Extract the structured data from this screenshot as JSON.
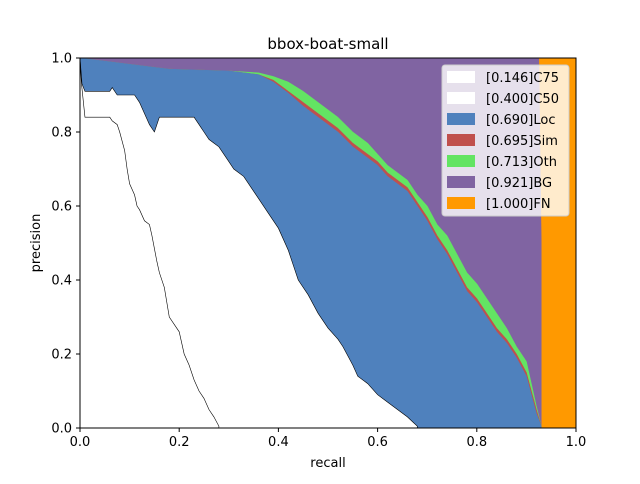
{
  "chart_data": {
    "type": "area",
    "title": "bbox-boat-small",
    "xlabel": "recall",
    "ylabel": "precision",
    "xlim": [
      0,
      1
    ],
    "ylim": [
      0,
      1
    ],
    "xticks": [
      "0.0",
      "0.2",
      "0.4",
      "0.6",
      "0.8",
      "1.0"
    ],
    "yticks": [
      "0.0",
      "0.2",
      "0.4",
      "0.6",
      "0.8",
      "1.0"
    ],
    "grid": false,
    "legend_position": "top-right",
    "legend": [
      {
        "label": "[0.146]C75",
        "color": "#ffffff"
      },
      {
        "label": "[0.400]C50",
        "color": "#ffffff"
      },
      {
        "label": "[0.690]Loc",
        "color": "#4f81bd"
      },
      {
        "label": "[0.695]Sim",
        "color": "#c0504d"
      },
      {
        "label": "[0.713]Oth",
        "color": "#63e463"
      },
      {
        "label": "[0.921]BG",
        "color": "#8064a2"
      },
      {
        "label": "[1.000]FN",
        "color": "#ff9900"
      }
    ],
    "series": [
      {
        "name": "[1.000]FN",
        "color": "#ff9900",
        "x": [
          0,
          1,
          1,
          0
        ],
        "y": [
          1,
          1,
          0,
          0
        ]
      },
      {
        "name": "[0.921]BG",
        "color": "#8064a2",
        "x": [
          0,
          0.925,
          0.93,
          0.93,
          0
        ],
        "y": [
          1,
          1,
          0.5,
          0,
          0
        ]
      },
      {
        "name": "[0.713]Oth",
        "color": "#63e463",
        "x": [
          0,
          0.18,
          0.3,
          0.36,
          0.39,
          0.42,
          0.45,
          0.48,
          0.52,
          0.55,
          0.58,
          0.6,
          0.62,
          0.64,
          0.66,
          0.68,
          0.7,
          0.72,
          0.74,
          0.76,
          0.78,
          0.8,
          0.82,
          0.84,
          0.86,
          0.88,
          0.9,
          0.92,
          0.93,
          0.93,
          0
        ],
        "y": [
          1,
          0.97,
          0.965,
          0.96,
          0.95,
          0.935,
          0.91,
          0.88,
          0.84,
          0.8,
          0.77,
          0.74,
          0.71,
          0.69,
          0.67,
          0.63,
          0.6,
          0.55,
          0.52,
          0.47,
          0.42,
          0.39,
          0.35,
          0.31,
          0.27,
          0.22,
          0.18,
          0.06,
          0.005,
          0,
          0
        ]
      },
      {
        "name": "[0.695]Sim",
        "color": "#c0504d",
        "x": [
          0,
          0.18,
          0.3,
          0.36,
          0.39,
          0.42,
          0.45,
          0.48,
          0.52,
          0.55,
          0.58,
          0.6,
          0.62,
          0.64,
          0.66,
          0.68,
          0.7,
          0.72,
          0.74,
          0.76,
          0.78,
          0.8,
          0.82,
          0.84,
          0.86,
          0.88,
          0.9,
          0.92,
          0.93,
          0.93,
          0
        ],
        "y": [
          1,
          0.97,
          0.965,
          0.955,
          0.94,
          0.91,
          0.88,
          0.85,
          0.81,
          0.77,
          0.74,
          0.72,
          0.69,
          0.67,
          0.65,
          0.61,
          0.57,
          0.52,
          0.48,
          0.43,
          0.38,
          0.35,
          0.31,
          0.27,
          0.24,
          0.2,
          0.15,
          0.05,
          0.005,
          0,
          0
        ]
      },
      {
        "name": "[0.690]Loc",
        "color": "#4f81bd",
        "x": [
          0,
          0.18,
          0.3,
          0.36,
          0.39,
          0.42,
          0.45,
          0.48,
          0.52,
          0.55,
          0.58,
          0.6,
          0.62,
          0.64,
          0.66,
          0.68,
          0.7,
          0.72,
          0.74,
          0.76,
          0.78,
          0.8,
          0.82,
          0.84,
          0.86,
          0.88,
          0.9,
          0.92,
          0.93,
          0.93,
          0
        ],
        "y": [
          1,
          0.97,
          0.965,
          0.955,
          0.935,
          0.905,
          0.87,
          0.84,
          0.8,
          0.76,
          0.73,
          0.71,
          0.68,
          0.66,
          0.64,
          0.6,
          0.56,
          0.51,
          0.47,
          0.42,
          0.37,
          0.34,
          0.3,
          0.26,
          0.23,
          0.19,
          0.14,
          0.04,
          0.005,
          0,
          0
        ]
      },
      {
        "name": "[0.400]C50",
        "color": "#ffffff",
        "x": [
          0,
          0.004,
          0.01,
          0.06,
          0.065,
          0.075,
          0.11,
          0.12,
          0.13,
          0.14,
          0.15,
          0.16,
          0.18,
          0.23,
          0.24,
          0.25,
          0.26,
          0.27,
          0.28,
          0.29,
          0.3,
          0.31,
          0.33,
          0.36,
          0.38,
          0.4,
          0.42,
          0.43,
          0.44,
          0.46,
          0.48,
          0.5,
          0.52,
          0.53,
          0.55,
          0.56,
          0.58,
          0.6,
          0.62,
          0.64,
          0.66,
          0.68,
          0.68,
          0
        ],
        "y": [
          1,
          0.93,
          0.91,
          0.91,
          0.92,
          0.9,
          0.9,
          0.88,
          0.85,
          0.82,
          0.8,
          0.84,
          0.84,
          0.84,
          0.82,
          0.8,
          0.78,
          0.77,
          0.76,
          0.74,
          0.72,
          0.7,
          0.68,
          0.62,
          0.58,
          0.54,
          0.48,
          0.44,
          0.4,
          0.36,
          0.31,
          0.27,
          0.24,
          0.22,
          0.17,
          0.14,
          0.12,
          0.09,
          0.07,
          0.05,
          0.03,
          0.005,
          0,
          0
        ]
      },
      {
        "name": "[0.146]C75",
        "color": "#ffffff",
        "x": [
          0,
          0.003,
          0.01,
          0.06,
          0.065,
          0.075,
          0.08,
          0.09,
          0.095,
          0.1,
          0.11,
          0.115,
          0.12,
          0.13,
          0.14,
          0.145,
          0.155,
          0.16,
          0.17,
          0.18,
          0.2,
          0.21,
          0.22,
          0.23,
          0.24,
          0.25,
          0.26,
          0.27,
          0.28,
          0.28,
          0
        ],
        "y": [
          1,
          0.93,
          0.84,
          0.84,
          0.83,
          0.82,
          0.8,
          0.75,
          0.7,
          0.66,
          0.63,
          0.6,
          0.59,
          0.56,
          0.55,
          0.52,
          0.45,
          0.42,
          0.38,
          0.3,
          0.26,
          0.2,
          0.17,
          0.13,
          0.1,
          0.08,
          0.05,
          0.03,
          0.005,
          0,
          0
        ]
      }
    ]
  }
}
